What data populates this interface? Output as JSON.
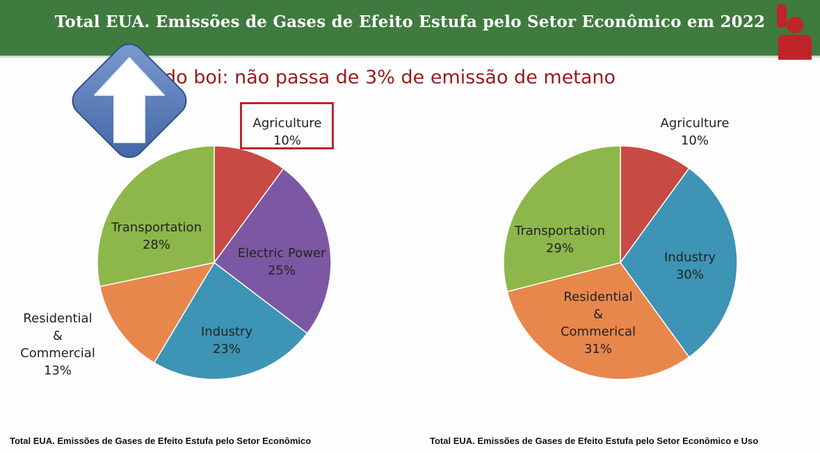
{
  "header": {
    "title": "Total EUA. Emissões de Gases de Efeito Estufa pelo Setor Econômico em 2022"
  },
  "subtitle": "do boi: não passa de 3% de emissão de metano",
  "colors": {
    "header_green": "#3f7a3e",
    "accent_red": "#c0232a",
    "agriculture": "#c74a44",
    "electric_power": "#7c57a3",
    "industry": "#3d94b5",
    "residential_commercial": "#e8874c",
    "transportation": "#8db74a"
  },
  "icons": {
    "upload": "upload-arrow-icon",
    "brand": "person-raising-hand-icon"
  },
  "chart_data": [
    {
      "type": "pie",
      "slices": [
        {
          "label": "Agriculture",
          "value": 10,
          "value_label": "10%",
          "color": "#c74a44"
        },
        {
          "label": "Electric Power",
          "value": 25,
          "value_label": "25%",
          "color": "#7c57a3"
        },
        {
          "label": "Industry",
          "value": 23,
          "value_label": "23%",
          "color": "#3d94b5"
        },
        {
          "label": "Residential & Commercial",
          "label_lines": [
            "Residential",
            "&",
            "Commercial"
          ],
          "value": 13,
          "value_label": "13%",
          "color": "#e8874c"
        },
        {
          "label": "Transportation",
          "value": 28,
          "value_label": "28%",
          "color": "#8db74a"
        }
      ],
      "caption": "Total EUA. Emissões de Gases de Efeito Estufa pelo Setor Econômico"
    },
    {
      "type": "pie",
      "slices": [
        {
          "label": "Agriculture",
          "value": 10,
          "value_label": "10%",
          "color": "#c74a44"
        },
        {
          "label": "Industry",
          "value": 30,
          "value_label": "30%",
          "color": "#3d94b5"
        },
        {
          "label": "Residential & Commerical",
          "label_lines": [
            "Residential",
            "&",
            "Commerical"
          ],
          "value": 31,
          "value_label": "31%",
          "color": "#e8874c"
        },
        {
          "label": "Transportation",
          "value": 29,
          "value_label": "29%",
          "color": "#8db74a"
        }
      ],
      "caption": "Total EUA. Emissões de Gases de Efeito Estufa pelo Setor Econômico e Uso"
    }
  ]
}
